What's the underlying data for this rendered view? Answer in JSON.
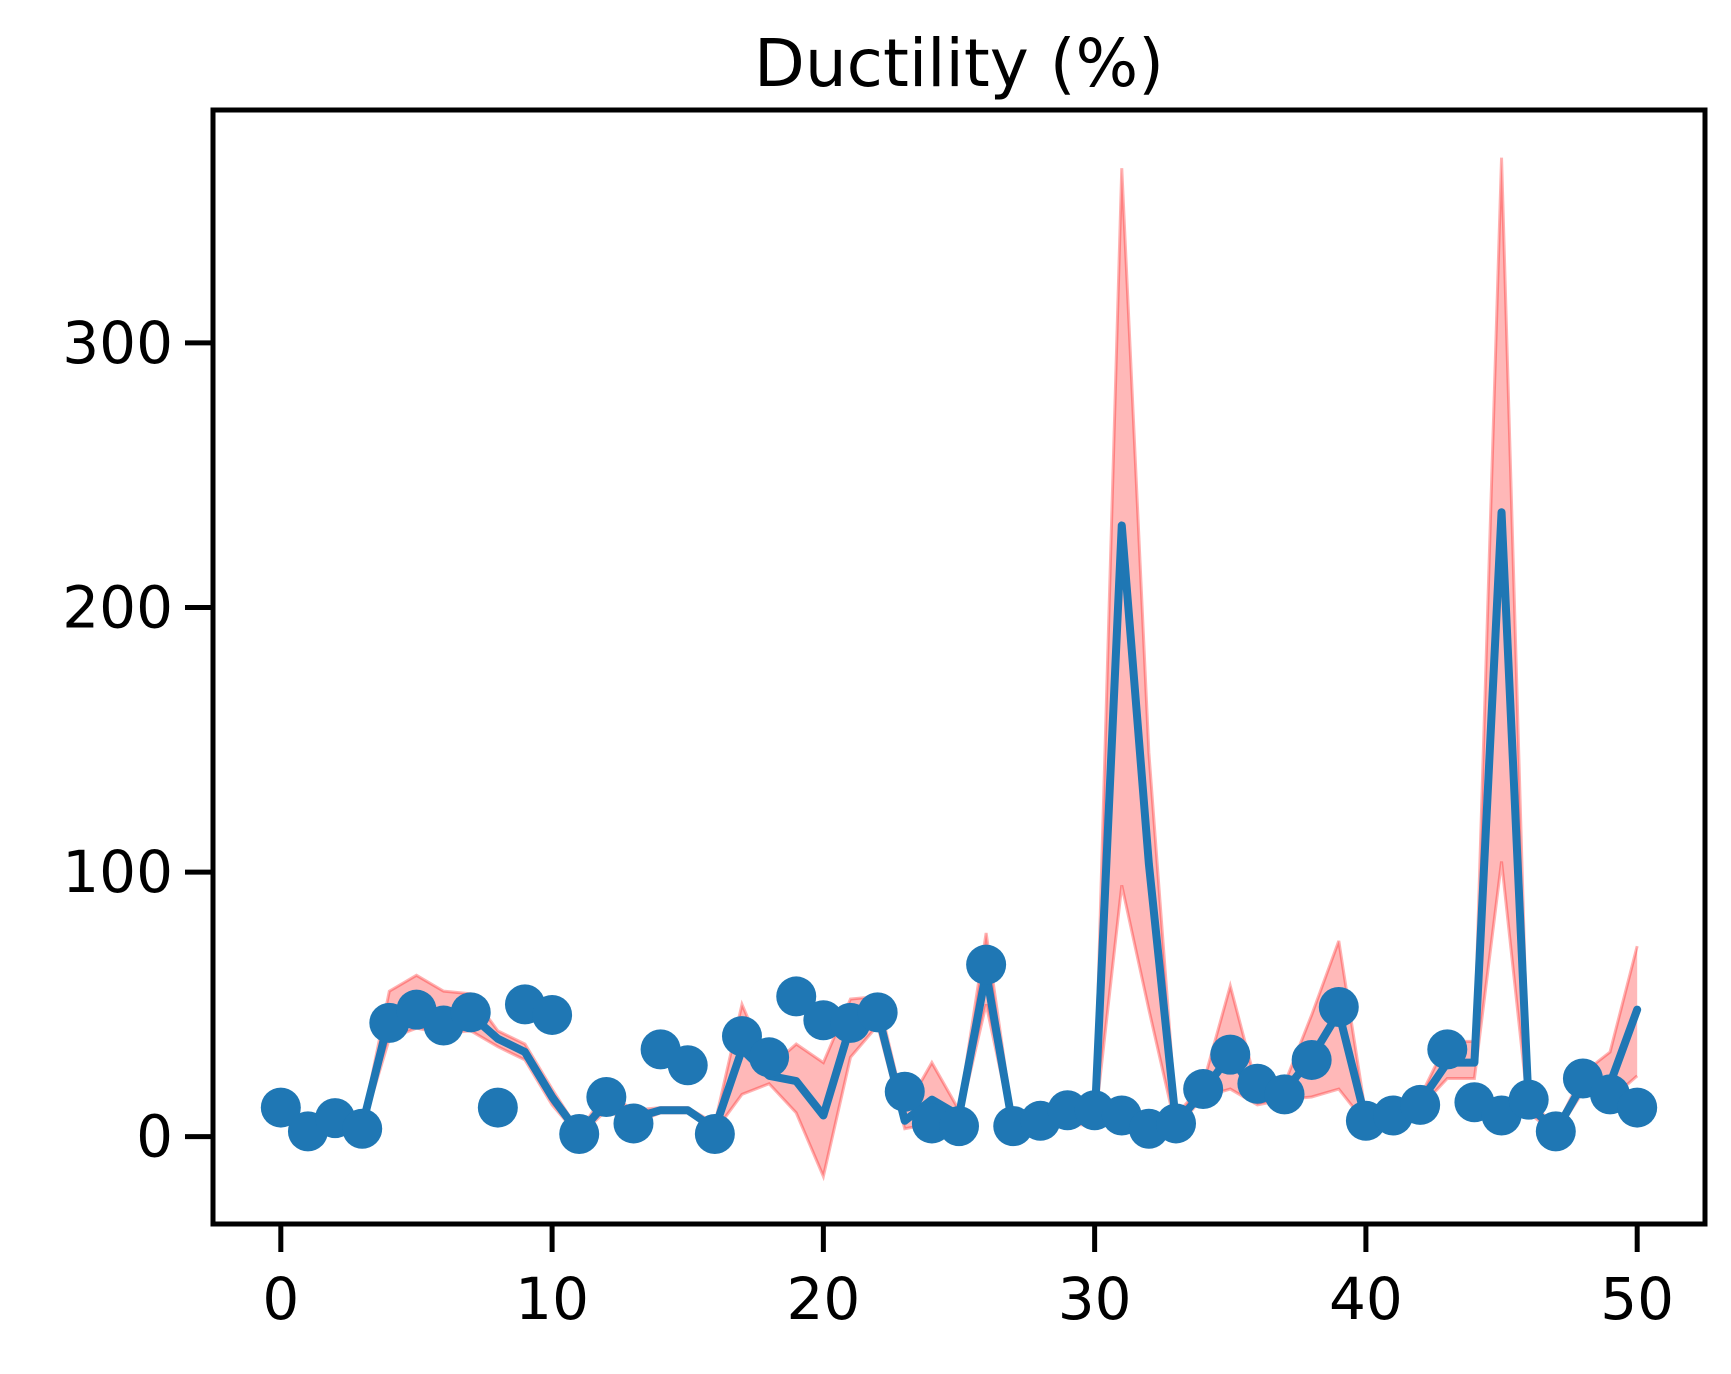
{
  "chart_data": {
    "type": "line",
    "title": "Ductility (%)",
    "xlabel": "",
    "ylabel": "",
    "xlim": [
      -2.5,
      52.5
    ],
    "ylim": [
      -33,
      388
    ],
    "xticks": [
      0,
      10,
      20,
      30,
      40,
      50
    ],
    "yticks": [
      0,
      100,
      200,
      300
    ],
    "grid": false,
    "legend": "none",
    "colors": {
      "points": "#1f77b4",
      "line": "#1f77b4",
      "band": "#ff0000"
    },
    "scatter": {
      "x": [
        0,
        1,
        2,
        3,
        4,
        5,
        6,
        7,
        8,
        9,
        10,
        11,
        12,
        13,
        14,
        15,
        16,
        17,
        18,
        19,
        20,
        21,
        22,
        23,
        24,
        25,
        26,
        27,
        28,
        29,
        30,
        31,
        32,
        33,
        34,
        35,
        36,
        37,
        38,
        39,
        40,
        41,
        42,
        43,
        44,
        45,
        46,
        47,
        48,
        49,
        50
      ],
      "y": [
        11,
        2,
        7,
        3,
        43,
        48,
        42,
        47,
        11,
        50,
        46,
        1,
        15,
        5,
        33,
        27,
        1,
        38,
        30,
        53,
        44,
        43,
        47,
        17,
        5,
        4,
        65,
        4,
        6,
        10,
        10,
        8,
        3,
        5,
        18,
        31,
        20,
        16,
        29,
        49,
        6,
        8,
        12,
        33,
        13,
        8,
        14,
        2,
        22,
        16,
        11
      ]
    },
    "mean_line": {
      "x": [
        0,
        1,
        2,
        3,
        4,
        5,
        6,
        7,
        8,
        9,
        10,
        11,
        12,
        13,
        14,
        15,
        16,
        17,
        18,
        19,
        20,
        21,
        22,
        23,
        24,
        25,
        26,
        27,
        28,
        29,
        30,
        31,
        32,
        33,
        34,
        35,
        36,
        37,
        38,
        39,
        40,
        41,
        42,
        43,
        44,
        45,
        46,
        47,
        48,
        49,
        50
      ],
      "y": [
        10,
        4,
        6,
        4,
        45,
        49,
        46,
        46,
        37,
        32,
        15,
        1,
        13,
        7,
        10,
        10,
        3,
        33,
        23,
        21,
        8,
        42,
        47,
        6,
        14,
        8,
        62,
        3,
        5,
        7,
        6,
        231,
        103,
        5,
        17,
        31,
        15,
        17,
        30,
        47,
        6,
        8,
        13,
        28,
        28,
        236,
        12,
        2,
        20,
        20,
        48
      ]
    },
    "band": {
      "x": [
        0,
        1,
        2,
        3,
        4,
        5,
        6,
        7,
        8,
        9,
        10,
        11,
        12,
        13,
        14,
        15,
        16,
        17,
        18,
        19,
        20,
        21,
        22,
        23,
        24,
        25,
        26,
        27,
        28,
        29,
        30,
        31,
        32,
        33,
        34,
        35,
        36,
        37,
        38,
        39,
        40,
        41,
        42,
        43,
        44,
        45,
        46,
        47,
        48,
        49,
        50
      ],
      "upper": [
        11,
        5,
        7,
        5,
        55,
        61,
        55,
        54,
        40,
        35,
        18,
        2,
        17,
        10,
        11,
        11,
        5,
        50,
        26,
        35,
        28,
        52,
        53,
        10,
        28,
        10,
        77,
        5,
        7,
        10,
        10,
        366,
        145,
        8,
        20,
        57,
        18,
        20,
        46,
        74,
        8,
        10,
        15,
        36,
        36,
        370,
        15,
        3,
        24,
        32,
        72
      ],
      "lower": [
        9,
        3,
        5,
        3,
        37,
        41,
        39,
        40,
        34,
        29,
        12,
        0,
        10,
        5,
        9,
        9,
        2,
        16,
        20,
        9,
        -15,
        30,
        42,
        3,
        5,
        6,
        50,
        2,
        4,
        5,
        4,
        95,
        48,
        3,
        15,
        18,
        12,
        14,
        15,
        18,
        5,
        6,
        11,
        22,
        22,
        104,
        9,
        1,
        17,
        14,
        23
      ]
    }
  }
}
